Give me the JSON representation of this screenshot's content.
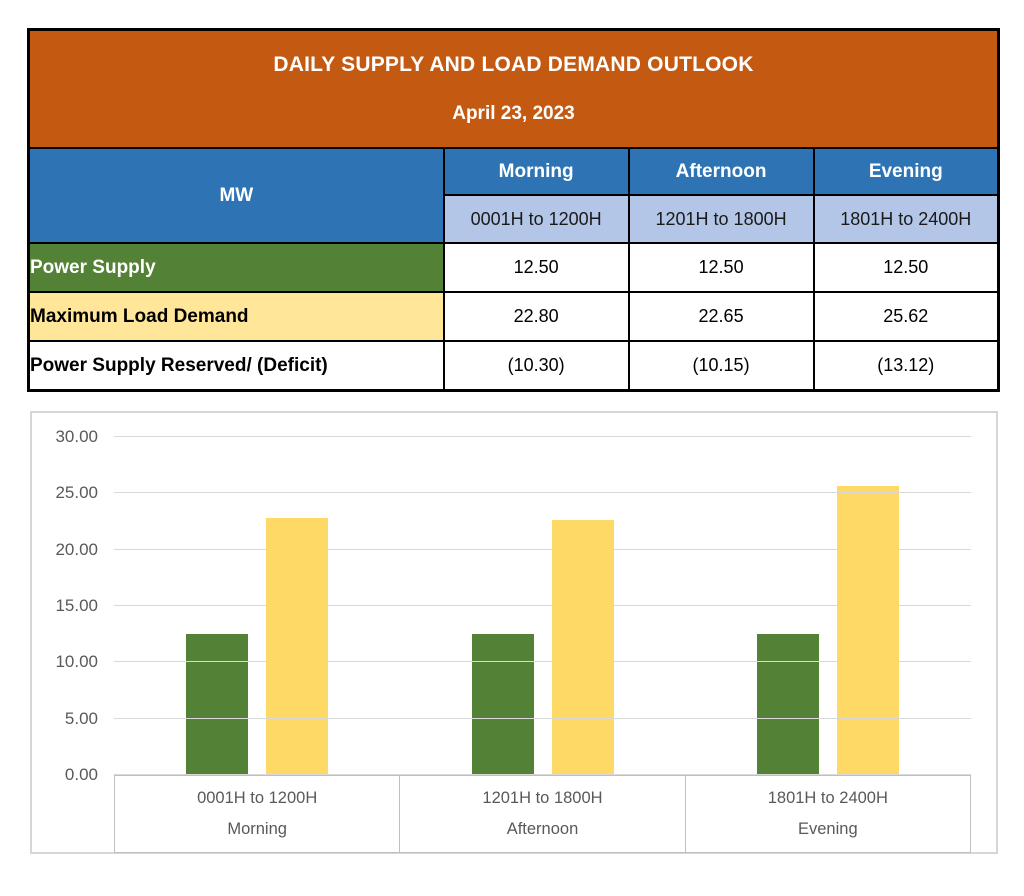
{
  "table": {
    "title": "DAILY SUPPLY AND LOAD DEMAND OUTLOOK",
    "date": "April 23, 2023",
    "unit_header": "MW",
    "periods": [
      {
        "name": "Morning",
        "range": "0001H to 1200H"
      },
      {
        "name": "Afternoon",
        "range": "1201H to 1800H"
      },
      {
        "name": "Evening",
        "range": "1801H to 2400H"
      }
    ],
    "rows": [
      {
        "label": "Power Supply",
        "values": [
          "12.50",
          "12.50",
          "12.50"
        ]
      },
      {
        "label": "Maximum Load Demand",
        "values": [
          "22.80",
          "22.65",
          "25.62"
        ]
      },
      {
        "label": "Power Supply Reserved/ (Deficit)",
        "values": [
          "(10.30)",
          "(10.15)",
          "(13.12)"
        ]
      }
    ]
  },
  "chart_data": {
    "type": "bar",
    "categories": [
      "0001H to 1200H",
      "1201H to 1800H",
      "1801H to 2400H"
    ],
    "category_groups": [
      "Morning",
      "Afternoon",
      "Evening"
    ],
    "series": [
      {
        "name": "Power Supply",
        "color": "#538135",
        "values": [
          12.5,
          12.5,
          12.5
        ]
      },
      {
        "name": "Maximum Load Demand",
        "color": "#FFD966",
        "values": [
          22.8,
          22.65,
          25.62
        ]
      }
    ],
    "title": "",
    "xlabel": "",
    "ylabel": "",
    "ylim": [
      0,
      30
    ],
    "ytick_step": 5,
    "ytick_decimals": 2,
    "grid": true,
    "legend": "none"
  },
  "colors": {
    "title_bg": "#C45911",
    "period_bg": "#2E74B5",
    "range_bg": "#B4C6E7",
    "supply_row_bg": "#538135",
    "demand_row_bg": "#FFE699",
    "bar_supply": "#538135",
    "bar_demand": "#FFD966",
    "axis_text": "#595959",
    "gridline": "#D9D9D9"
  }
}
